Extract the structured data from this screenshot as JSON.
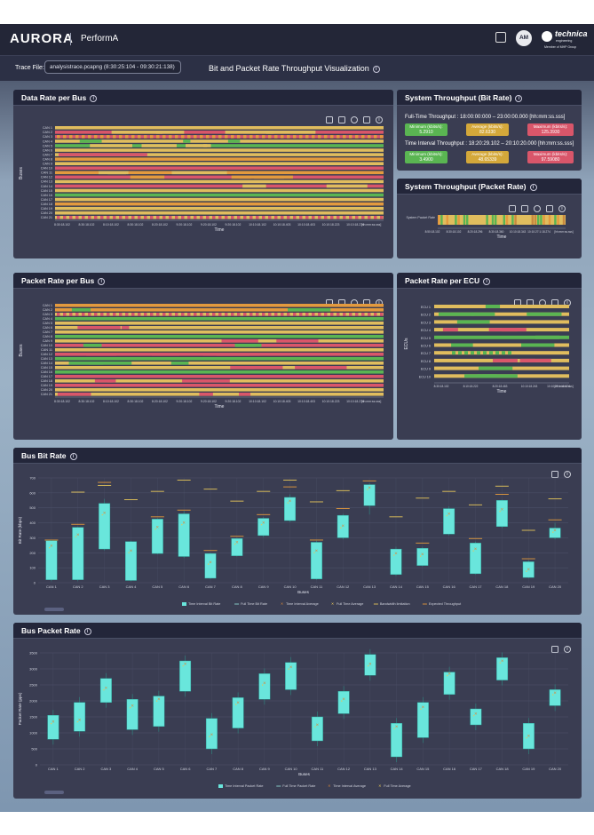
{
  "header": {
    "logo": "AURORA",
    "app_name": "PerformA",
    "avatar_initials": "AM",
    "brand_name": "technica",
    "brand_sub": "engineering",
    "brand_group": "Member of MHP Group"
  },
  "subheader": {
    "trace_label": "Trace File:",
    "trace_file": "analysistrace.pcapng (8:30:25:104 - 09:30:21:138)",
    "page_title": "Bit and Packet Rate Throughput Visualization"
  },
  "colors": {
    "green": "#5ab552",
    "yellow": "#e0bd5e",
    "orange": "#e39a3e",
    "red": "#d9566a",
    "teal": "#69e6dc",
    "panel": "#3a3d52"
  },
  "data_rate_panel": {
    "title": "Data Rate per Bus",
    "y_label": "Buses",
    "x_label": "Time",
    "x_ticks": [
      "8:30:18.102",
      "8:30:18.102",
      "8:10:18.102",
      "8:30:18.102",
      "8:20:18.102",
      "9:20:18.102",
      "9:20:18.102",
      "9:20:18.102",
      "10:10:18.102",
      "10:10:18.403",
      "10:10:18.403",
      "10:10:18.223",
      "10:10:18.274"
    ],
    "x_unit": "[hh:mm:ss.sss]",
    "rows": [
      "CAN 1",
      "CAN 2",
      "CAN 3",
      "CAN 4",
      "CAN 5",
      "CAN 6",
      "CAN 7",
      "CAN 8",
      "CAN 9",
      "CAN 10",
      "CAN 11",
      "CAN 12",
      "CAN 13",
      "CAN 14",
      "CAN 15",
      "CAN 16",
      "CAN 17",
      "CAN 18",
      "CAN 19",
      "CAN 20",
      "CAN 21"
    ],
    "row_patterns": [
      "y",
      "ry",
      "ro",
      "yg",
      "gy",
      "y",
      "yr",
      "o",
      "y",
      "r",
      "oy",
      "ro",
      "y",
      "ry",
      "y",
      "g",
      "y",
      "o",
      "y",
      "y",
      "yr"
    ]
  },
  "system_bit": {
    "title": "System Throughput (Bit Rate)",
    "full_label": "Full-Time Throughput : 18:00:00:000 – 23:00:00.000 [hh:mm:ss.sss]",
    "full_metrics": [
      {
        "label": "Minimum (kbits/s):",
        "value": "5.2910"
      },
      {
        "label": "Average (kbits/s):",
        "value": "82.6330"
      },
      {
        "label": "Maximum (kbits/s):",
        "value": "125.3930"
      }
    ],
    "interval_label": "Time Interval Throughput : 18:20:29.102 – 20:10:20.000 [hh:mm:ss.sss]",
    "interval_metrics": [
      {
        "label": "Minimum (kbits/s):",
        "value": "3.4900"
      },
      {
        "label": "Average (kbits/s):",
        "value": "48.65339"
      },
      {
        "label": "Maximum (kbits/s):",
        "value": "97.59080"
      }
    ]
  },
  "system_packet": {
    "title": "System Throughput (Packet Rate)",
    "row_label": "System Packet Rate",
    "x_label": "Time",
    "x_ticks": [
      "8:50:18.102",
      "8:30:18.102",
      "8:20:18.296",
      "8:30:18.360",
      "10:10:18.343",
      "10:10:27:1:18.274"
    ],
    "x_unit": "[hh:mm:ss.sss]"
  },
  "packet_rate_panel": {
    "title": "Packet Rate per Bus",
    "y_label": "Buses",
    "x_label": "Time",
    "x_ticks": [
      "8:30:18.102",
      "8:30:18.102",
      "8:10:18.102",
      "8:30:18.102",
      "8:20:18.102",
      "9:20:18.102",
      "9:20:18.102",
      "9:20:18.102",
      "10:10:18.102",
      "10:10:18.403",
      "10:10:18.403",
      "10:10:18.223",
      "10:10:18.274"
    ],
    "x_unit": "[hh:mm:ss.sss]",
    "rows": [
      "CAN 1",
      "CAN 2",
      "CAN 3",
      "CAN 4",
      "CAN 5",
      "CAN 6",
      "CAN 7",
      "CAN 8",
      "CAN 9",
      "CAN 10",
      "CAN 11",
      "CAN 12",
      "CAN 13",
      "CAN 14",
      "CAN 15",
      "CAN 16",
      "CAN 17",
      "CAN 18",
      "CAN 19",
      "CAN 20",
      "CAN 21"
    ]
  },
  "packet_ecu_panel": {
    "title": "Packet Rate per ECU",
    "y_label": "ECUs",
    "x_label": "Time",
    "x_ticks": [
      "8:30:18.102",
      "8:10:18.222",
      "8:20:18.463",
      "10:10:18.243",
      "10:10:27:1:18.274"
    ],
    "x_unit": "[hh:mm:ss.sss]",
    "rows": [
      "ECU 1",
      "ECU 2",
      "ECU 3",
      "ECU 4",
      "ECU 5",
      "ECU 6",
      "ECU 7",
      "ECU 8",
      "ECU 9",
      "ECU 10"
    ]
  },
  "legend_bit": [
    "Time Interval Bit Rate",
    "Full Time Bit Rate",
    "Time Interval Average",
    "Full Time Average",
    "Bandwidth limitation",
    "Expected Throughput"
  ],
  "legend_packet": [
    "Time Interval Packet Rate",
    "Full Time Packet Rate",
    "Time Interval Average",
    "Full Time Average"
  ],
  "chart_data": [
    {
      "type": "box",
      "title": "Bus Bit Rate",
      "xlabel": "Buses",
      "ylabel": "Bit Rate (kbps)",
      "ylim": [
        0,
        700
      ],
      "yticks": [
        0,
        100,
        200,
        300,
        400,
        500,
        600,
        700
      ],
      "categories": [
        "CAN 1",
        "CAN 2",
        "CAN 3",
        "CAN 4",
        "CAN 5",
        "CAN 6",
        "CAN 7",
        "CAN 8",
        "CAN 9",
        "CAN 10",
        "CAN 11",
        "CAN 12",
        "CAN 13",
        "CAN 14",
        "CAN 15",
        "CAN 16",
        "CAN 17",
        "CAN 18",
        "CAN 19",
        "CAN 20"
      ],
      "boxes": [
        {
          "low": 20,
          "high": 280,
          "whisker_low": 10,
          "whisker_high": 285,
          "avg": 245,
          "bandwidth": null,
          "expected": 285
        },
        {
          "low": 20,
          "high": 370,
          "whisker_low": 10,
          "whisker_high": 375,
          "avg": 320,
          "bandwidth": 605,
          "expected": 390
        },
        {
          "low": 225,
          "high": 530,
          "whisker_low": 215,
          "whisker_high": 560,
          "avg": 465,
          "bandwidth": 650,
          "expected": 670
        },
        {
          "low": 15,
          "high": 275,
          "whisker_low": 10,
          "whisker_high": 280,
          "avg": 215,
          "bandwidth": 555,
          "expected": null
        },
        {
          "low": 195,
          "high": 425,
          "whisker_low": 190,
          "whisker_high": 430,
          "avg": 370,
          "bandwidth": 610,
          "expected": 440
        },
        {
          "low": 175,
          "high": 460,
          "whisker_low": 165,
          "whisker_high": 480,
          "avg": 400,
          "bandwidth": 685,
          "expected": 485
        },
        {
          "low": 30,
          "high": 195,
          "whisker_low": 25,
          "whisker_high": 200,
          "avg": 135,
          "bandwidth": 625,
          "expected": 215
        },
        {
          "low": 180,
          "high": 295,
          "whisker_low": 175,
          "whisker_high": 300,
          "avg": 270,
          "bandwidth": 545,
          "expected": 310
        },
        {
          "low": 315,
          "high": 430,
          "whisker_low": 305,
          "whisker_high": 440,
          "avg": 400,
          "bandwidth": 610,
          "expected": 455
        },
        {
          "low": 415,
          "high": 570,
          "whisker_low": 405,
          "whisker_high": 590,
          "avg": 545,
          "bandwidth": 685,
          "expected": 640
        },
        {
          "low": 25,
          "high": 270,
          "whisker_low": 20,
          "whisker_high": 280,
          "avg": 215,
          "bandwidth": 540,
          "expected": 285
        },
        {
          "low": 300,
          "high": 450,
          "whisker_low": 290,
          "whisker_high": 460,
          "avg": 380,
          "bandwidth": 615,
          "expected": 495
        },
        {
          "low": 515,
          "high": 655,
          "whisker_low": 455,
          "whisker_high": 665,
          "avg": 635,
          "bandwidth": null,
          "expected": 680
        },
        {
          "low": 55,
          "high": 225,
          "whisker_low": 45,
          "whisker_high": 240,
          "avg": 195,
          "bandwidth": 440,
          "expected": null
        },
        {
          "low": 115,
          "high": 230,
          "whisker_low": 110,
          "whisker_high": 240,
          "avg": 190,
          "bandwidth": 565,
          "expected": 265
        },
        {
          "low": 325,
          "high": 495,
          "whisker_low": 315,
          "whisker_high": 510,
          "avg": 460,
          "bandwidth": 610,
          "expected": null
        },
        {
          "low": 60,
          "high": 265,
          "whisker_low": 55,
          "whisker_high": 275,
          "avg": 225,
          "bandwidth": 520,
          "expected": 295
        },
        {
          "low": 375,
          "high": 550,
          "whisker_low": 365,
          "whisker_high": 555,
          "avg": 490,
          "bandwidth": 645,
          "expected": 590
        },
        {
          "low": 35,
          "high": 140,
          "whisker_low": 30,
          "whisker_high": 150,
          "avg": 90,
          "bandwidth": 350,
          "expected": 160
        },
        {
          "low": 300,
          "high": 365,
          "whisker_low": 290,
          "whisker_high": 400,
          "avg": 350,
          "bandwidth": 560,
          "expected": 420
        }
      ]
    },
    {
      "type": "box",
      "title": "Bus Packet Rate",
      "xlabel": "Buses",
      "ylabel": "Packet Rate (pps)",
      "ylim": [
        0,
        3500
      ],
      "yticks": [
        0,
        500,
        1000,
        1500,
        2000,
        2500,
        3000,
        3500
      ],
      "categories": [
        "CAN 1",
        "CAN 2",
        "CAN 3",
        "CAN 4",
        "CAN 5",
        "CAN 6",
        "CAN 7",
        "CAN 8",
        "CAN 9",
        "CAN 10",
        "CAN 11",
        "CAN 12",
        "CAN 13",
        "CAN 14",
        "CAN 15",
        "CAN 16",
        "CAN 17",
        "CAN 18",
        "CAN 19",
        "CAN 20"
      ],
      "boxes": [
        {
          "low": 800,
          "high": 1550,
          "avg": 1350
        },
        {
          "low": 1050,
          "high": 1950,
          "avg": 1400
        },
        {
          "low": 1950,
          "high": 2700,
          "avg": 2400
        },
        {
          "low": 1100,
          "high": 2050,
          "avg": 1850
        },
        {
          "low": 1200,
          "high": 2150,
          "avg": 2050
        },
        {
          "low": 2300,
          "high": 3250,
          "avg": 3150
        },
        {
          "low": 500,
          "high": 1450,
          "avg": 950
        },
        {
          "low": 1150,
          "high": 2100,
          "avg": 1950
        },
        {
          "low": 2050,
          "high": 2850,
          "avg": 2550
        },
        {
          "low": 2350,
          "high": 3200,
          "avg": 3050
        },
        {
          "low": 750,
          "high": 1500,
          "avg": 1250
        },
        {
          "low": 1600,
          "high": 2300,
          "avg": 2050
        },
        {
          "low": 2800,
          "high": 3450,
          "avg": 3150
        },
        {
          "low": 250,
          "high": 1300,
          "avg": 1200
        },
        {
          "low": 850,
          "high": 1950,
          "avg": 1800
        },
        {
          "low": 2200,
          "high": 2900,
          "avg": 2850
        },
        {
          "low": 1250,
          "high": 1750,
          "avg": 1600
        },
        {
          "low": 2650,
          "high": 3350,
          "avg": 3250
        },
        {
          "low": 500,
          "high": 1300,
          "avg": 900
        },
        {
          "low": 1850,
          "high": 2350,
          "avg": 2250
        }
      ]
    }
  ]
}
